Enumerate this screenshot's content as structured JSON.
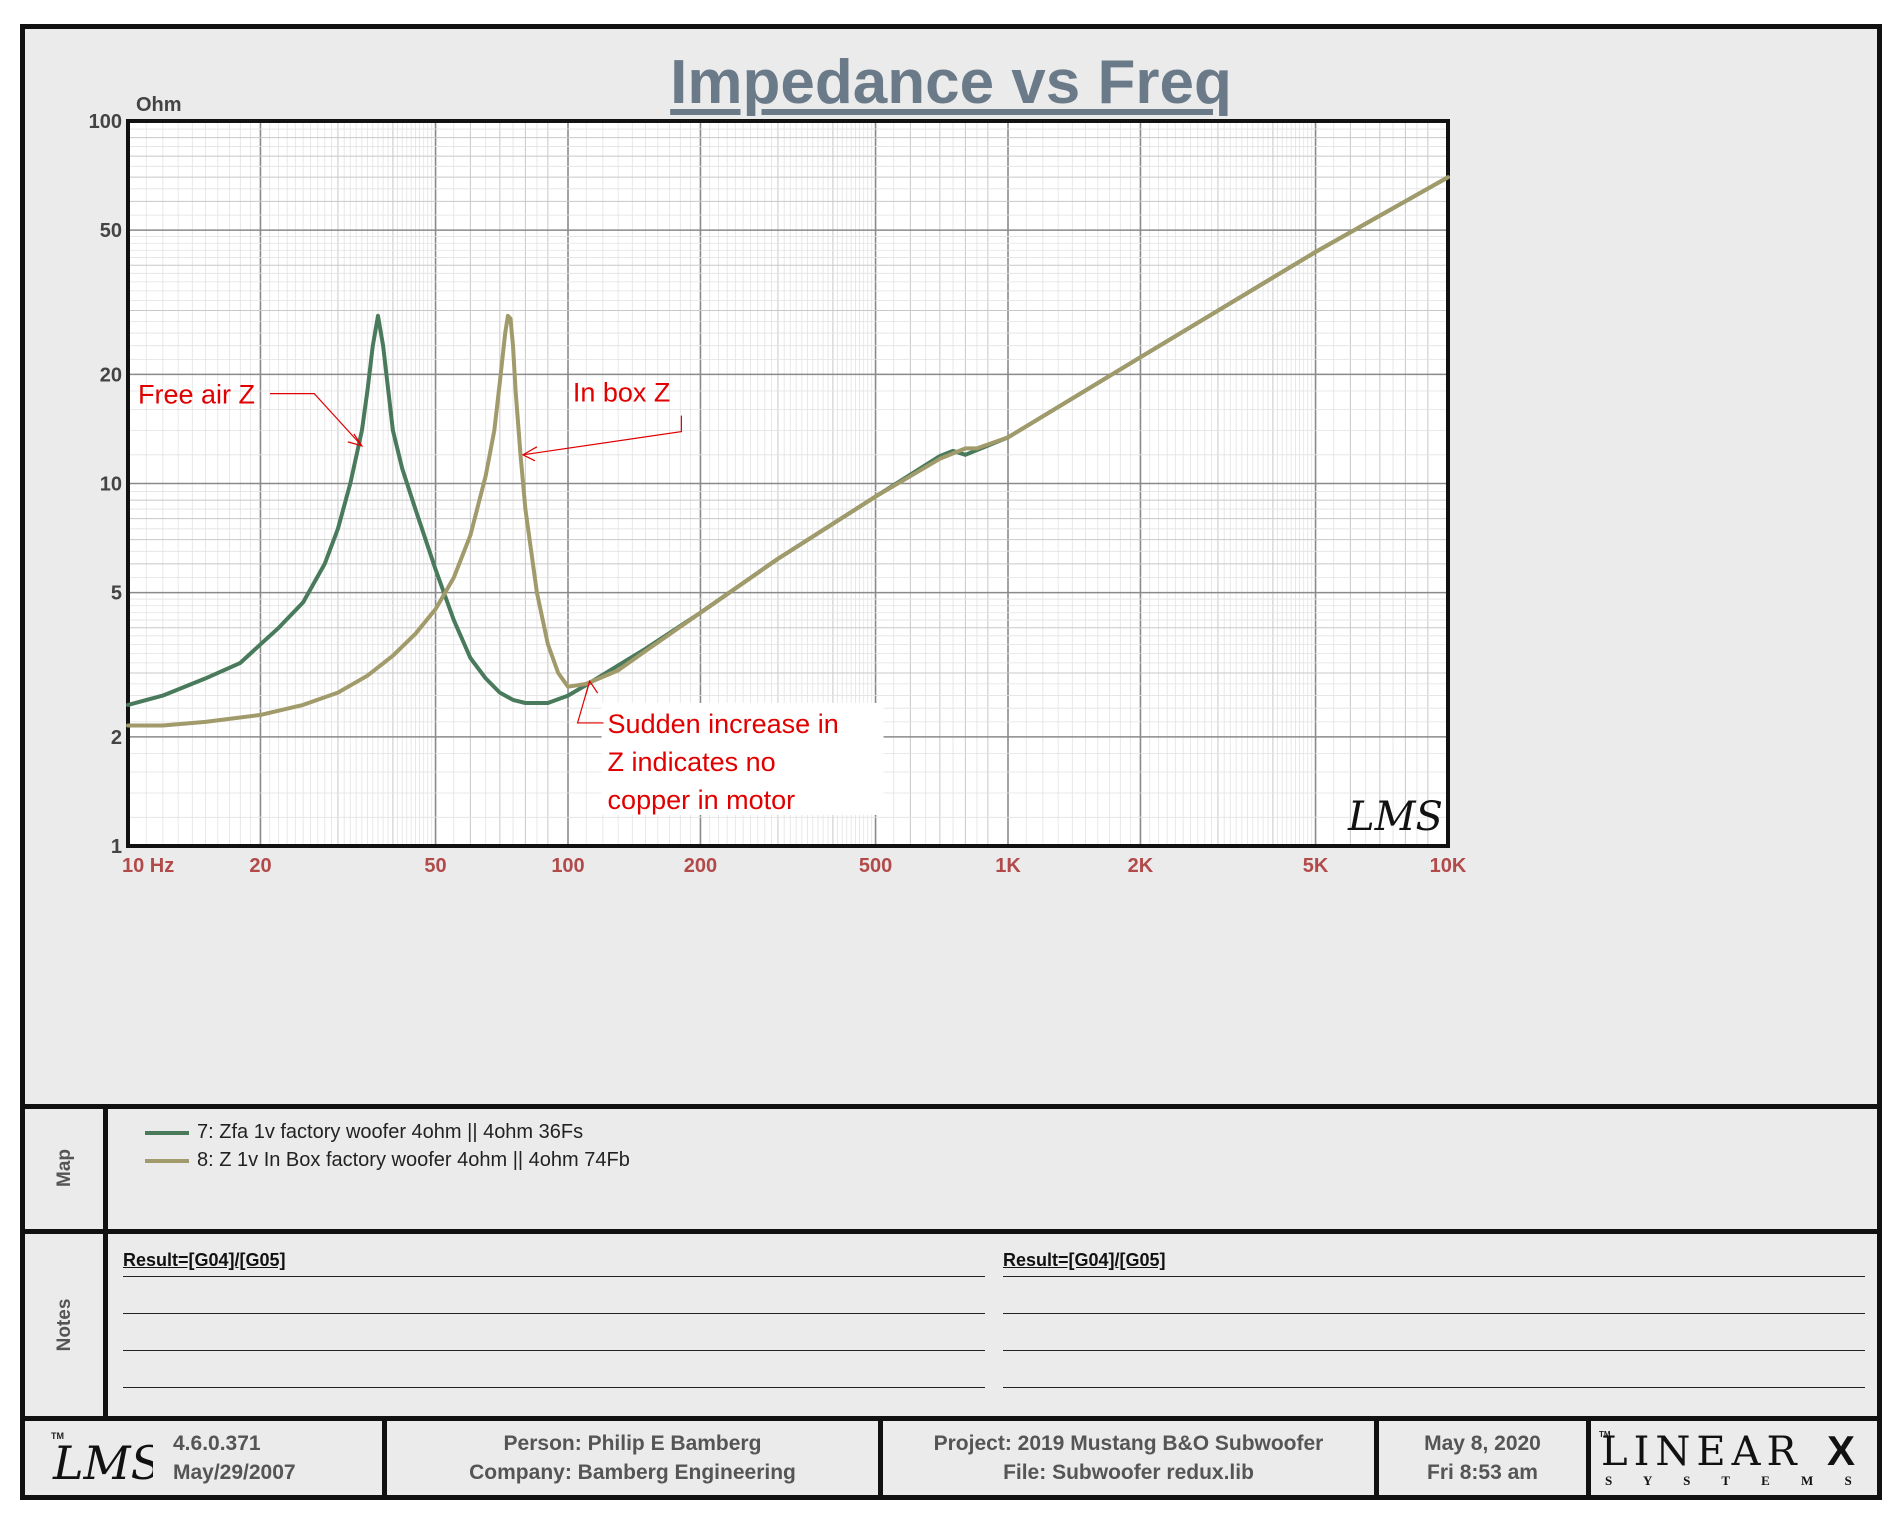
{
  "chart_data": {
    "type": "line",
    "title": "Impedance vs Freq",
    "ylabel": "Ohm",
    "x_scale": "log",
    "y_scale": "log",
    "xlim": [
      10,
      10000
    ],
    "ylim": [
      1,
      100
    ],
    "x_ticks": [
      {
        "value": 10,
        "label": "10  Hz"
      },
      {
        "value": 20,
        "label": "20"
      },
      {
        "value": 50,
        "label": "50"
      },
      {
        "value": 100,
        "label": "100"
      },
      {
        "value": 200,
        "label": "200"
      },
      {
        "value": 500,
        "label": "500"
      },
      {
        "value": 1000,
        "label": "1K"
      },
      {
        "value": 2000,
        "label": "2K"
      },
      {
        "value": 5000,
        "label": "5K"
      },
      {
        "value": 10000,
        "label": "10K"
      }
    ],
    "y_ticks": [
      {
        "value": 1,
        "label": "1"
      },
      {
        "value": 2,
        "label": "2"
      },
      {
        "value": 5,
        "label": "5"
      },
      {
        "value": 10,
        "label": "10"
      },
      {
        "value": 20,
        "label": "20"
      },
      {
        "value": 50,
        "label": "50"
      },
      {
        "value": 100,
        "label": "100"
      }
    ],
    "grid": true,
    "series": [
      {
        "name": "7: Zfa 1v factory woofer 4ohm || 4ohm 36Fs",
        "color": "#4a7a5c",
        "x": [
          10,
          12,
          15,
          18,
          20,
          22,
          25,
          28,
          30,
          32,
          34,
          35,
          36,
          37,
          38,
          40,
          42,
          45,
          50,
          55,
          60,
          65,
          70,
          75,
          80,
          90,
          100,
          110,
          130,
          150,
          200,
          300,
          500,
          700,
          750,
          800,
          1000,
          2000,
          5000,
          10000
        ],
        "y": [
          2.45,
          2.6,
          2.9,
          3.2,
          3.6,
          4.0,
          4.7,
          6.0,
          7.5,
          10.0,
          14.0,
          18.0,
          24.0,
          29.0,
          24.0,
          14.0,
          11.0,
          8.5,
          5.8,
          4.2,
          3.3,
          2.9,
          2.65,
          2.53,
          2.48,
          2.48,
          2.6,
          2.78,
          3.15,
          3.5,
          4.4,
          6.2,
          9.2,
          11.9,
          12.3,
          12.0,
          13.4,
          22.3,
          43.5,
          70.0
        ]
      },
      {
        "name": "8: Z 1v In Box factory woofer 4ohm || 4ohm 74Fb",
        "color": "#a19a6a",
        "x": [
          10,
          12,
          15,
          20,
          25,
          30,
          35,
          40,
          45,
          50,
          55,
          60,
          65,
          68,
          70,
          72,
          73,
          74,
          75,
          76,
          78,
          80,
          85,
          90,
          95,
          100,
          110,
          130,
          150,
          200,
          300,
          500,
          700,
          800,
          850,
          1000,
          2000,
          5000,
          10000
        ],
        "y": [
          2.15,
          2.15,
          2.2,
          2.3,
          2.45,
          2.65,
          2.95,
          3.35,
          3.85,
          4.5,
          5.5,
          7.2,
          10.5,
          14.0,
          19.0,
          26.0,
          29.0,
          28.5,
          24.0,
          18.0,
          12.0,
          8.5,
          5.0,
          3.6,
          3.0,
          2.75,
          2.8,
          3.05,
          3.45,
          4.4,
          6.2,
          9.2,
          11.7,
          12.5,
          12.5,
          13.4,
          22.3,
          43.5,
          70.0
        ]
      }
    ],
    "annotations": [
      {
        "text": "Free air Z",
        "x": 26,
        "y": 17.7,
        "arrow_to": [
          34,
          12.7
        ]
      },
      {
        "text": "In box Z",
        "x": 120,
        "y": 17.7,
        "arrow_to": [
          79,
          12.0
        ]
      },
      {
        "lines": [
          "Sudden increase in",
          "Z indicates no",
          "copper in motor"
        ],
        "x": 125,
        "y": 2.2,
        "arrow_to": [
          112,
          2.85
        ]
      }
    ]
  },
  "map_panel": {
    "label": "Map"
  },
  "notes_panel": {
    "label": "Notes",
    "left_heading": "Result=[G04]/[G05]",
    "right_heading": "Result=[G04]/[G05]"
  },
  "footer": {
    "lms_logo": "LMS",
    "watermark": "LMS",
    "version": "4.6.0.371",
    "build_date": "May/29/2007",
    "person": "Person: Philip E Bamberg",
    "company": "Company: Bamberg Engineering",
    "project": "Project: 2019 Mustang B&O Subwoofer",
    "file": "File: Subwoofer redux.lib",
    "date": "May  8, 2020",
    "time": "Fri  8:53 am",
    "brand_top": "LINEAR",
    "brand_mark": "X",
    "brand_bottom": "S Y S T E M S",
    "tm": "TM"
  },
  "colors": {
    "title": "#6a7a88",
    "axis_tick_x": "#b34a4a",
    "axis_tick_y": "#444444",
    "annotation": "#e00000",
    "panel_bg": "#ebebeb"
  }
}
